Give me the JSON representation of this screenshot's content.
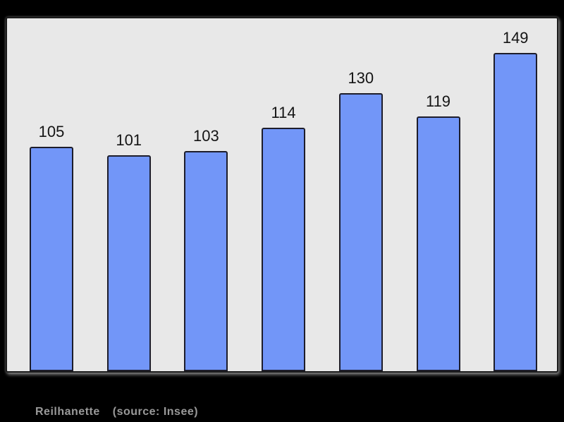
{
  "page": {
    "background": "#000000"
  },
  "chart_data": {
    "type": "bar",
    "values": [
      105,
      101,
      103,
      114,
      130,
      119,
      149
    ],
    "data_labels": [
      105,
      101,
      103,
      114,
      130,
      119,
      149
    ],
    "title": "",
    "xlabel": "",
    "ylabel": "",
    "ylim": [
      0,
      165
    ],
    "grid": false,
    "legend": false,
    "bar_color": "#7296f8",
    "bar_border_color": "#1d1d2b",
    "plot_background": "#e8e8e8",
    "frame_border_color": "#1b1b1b",
    "value_label_color": "#141414"
  },
  "caption": {
    "title": "Reilhanette",
    "source": "(source: Insee)",
    "color": "#999999"
  }
}
